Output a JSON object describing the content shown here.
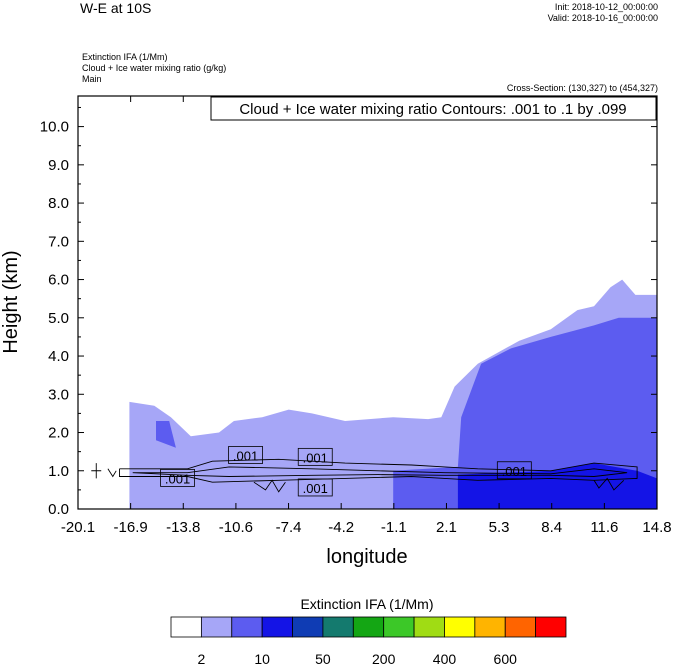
{
  "header": {
    "title": "W-E at 10S",
    "init": "Init: 2018-10-12_00:00:00",
    "valid": "Valid: 2018-10-16_00:00:00",
    "fields": [
      "Extinction IFA   (1/Mm)",
      "Cloud + Ice water mixing ratio   (g/kg)",
      "Main"
    ],
    "cross_section": "Cross-Section: (130,327) to (454,327)"
  },
  "chart_data": {
    "type": "area",
    "title": "Cloud + Ice water mixing ratio Contours: .001 to .1 by .099",
    "xlabel": "longitude",
    "ylabel": "Height (km)",
    "x_ticks": [
      "-20.1",
      "-16.9",
      "-13.8",
      "-10.6",
      "-7.4",
      "-4.2",
      "-1.1",
      "2.1",
      "5.3",
      "8.4",
      "11.6",
      "14.8"
    ],
    "y_ticks": [
      "0.0",
      "1.0",
      "2.0",
      "3.0",
      "4.0",
      "5.0",
      "6.0",
      "7.0",
      "8.0",
      "9.0",
      "10.0"
    ],
    "xlim": [
      -20.1,
      14.8
    ],
    "ylim": [
      0,
      10.8
    ],
    "contour_labels": [
      {
        "text": ".001",
        "x": -10.0,
        "y": 1.4
      },
      {
        "text": ".001",
        "x": -5.8,
        "y": 1.35
      },
      {
        "text": ".001",
        "x": -14.1,
        "y": 0.8
      },
      {
        "text": ".001",
        "x": -5.8,
        "y": 0.55
      },
      {
        "text": ".001",
        "x": 6.2,
        "y": 1.0
      }
    ],
    "shaded_layers": [
      {
        "level": "2 to 10",
        "color": "#a6a6f7",
        "outline": [
          [
            -17.0,
            0
          ],
          [
            -17.0,
            2.8
          ],
          [
            -15.5,
            2.7
          ],
          [
            -14.5,
            2.4
          ],
          [
            -13.3,
            1.9
          ],
          [
            -11.6,
            2.0
          ],
          [
            -10.7,
            2.3
          ],
          [
            -9.0,
            2.4
          ],
          [
            -7.4,
            2.6
          ],
          [
            -6.0,
            2.5
          ],
          [
            -4.0,
            2.3
          ],
          [
            -1.1,
            2.4
          ],
          [
            1.0,
            2.35
          ],
          [
            1.8,
            2.4
          ],
          [
            2.6,
            3.2
          ],
          [
            4.0,
            3.8
          ],
          [
            6.5,
            4.4
          ],
          [
            8.4,
            4.7
          ],
          [
            10.0,
            5.2
          ],
          [
            11.0,
            5.3
          ],
          [
            12.0,
            5.8
          ],
          [
            12.7,
            6.0
          ],
          [
            13.5,
            5.6
          ],
          [
            14.8,
            5.6
          ],
          [
            14.8,
            0
          ]
        ]
      },
      {
        "level": "10 to 50",
        "color": "#5c5cf0",
        "outline": [
          [
            -15.4,
            2.3
          ],
          [
            -14.6,
            2.3
          ],
          [
            -14.2,
            1.6
          ],
          [
            -15.4,
            1.8
          ]
        ]
      },
      {
        "level": "10 to 50 (surface)",
        "color": "#5c5cf0",
        "outline": [
          [
            -1.1,
            0
          ],
          [
            -1.1,
            1.0
          ],
          [
            2.8,
            1.1
          ],
          [
            3.0,
            2.4
          ],
          [
            4.2,
            3.8
          ],
          [
            6.0,
            4.2
          ],
          [
            8.4,
            4.5
          ],
          [
            11.0,
            4.8
          ],
          [
            12.5,
            5.0
          ],
          [
            14.8,
            5.0
          ],
          [
            14.8,
            0
          ]
        ]
      },
      {
        "level": "50 to 200",
        "color": "#1414e6",
        "outline": [
          [
            2.8,
            0
          ],
          [
            2.8,
            0.9
          ],
          [
            8.5,
            1.0
          ],
          [
            11.0,
            1.2
          ],
          [
            13.6,
            1.0
          ],
          [
            14.8,
            0.8
          ],
          [
            14.8,
            0
          ]
        ]
      }
    ]
  },
  "colorbar": {
    "title": "Extinction IFA  (1/Mm)",
    "colors": [
      "#ffffff",
      "#a6a6f7",
      "#5c5cf0",
      "#1414e6",
      "#0f3cb4",
      "#147a6e",
      "#14a614",
      "#3cc828",
      "#a0dc14",
      "#ffff00",
      "#ffb400",
      "#ff6400",
      "#ff0000"
    ],
    "labels": [
      "2",
      "10",
      "50",
      "200",
      "400",
      "600"
    ]
  }
}
